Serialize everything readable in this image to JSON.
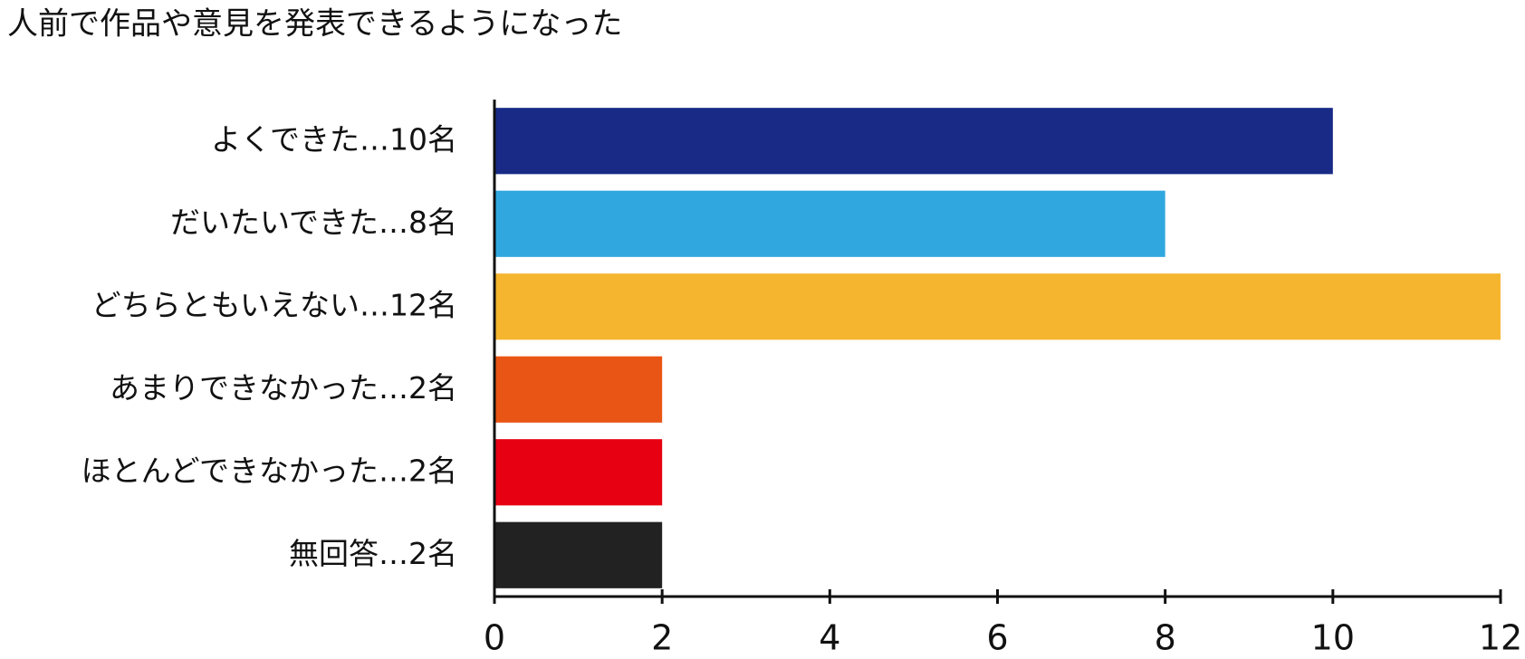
{
  "chart_data": {
    "type": "bar",
    "orientation": "horizontal",
    "title": "人前で作品や意見を発表できるようになった",
    "categories": [
      "よくできた…10名",
      "だいたいできた…8名",
      "どちらともいえない…12名",
      "あまりできなかった…2名",
      "ほとんどできなかった…2名",
      "無回答…2名"
    ],
    "values": [
      10,
      8,
      12,
      2,
      2,
      2
    ],
    "colors": [
      "#182a86",
      "#31a7e0",
      "#f5b52f",
      "#e95514",
      "#e60012",
      "#222222"
    ],
    "xlim": [
      0,
      12
    ],
    "xticks": [
      0,
      2,
      4,
      6,
      8,
      10,
      12
    ],
    "grid": false
  }
}
